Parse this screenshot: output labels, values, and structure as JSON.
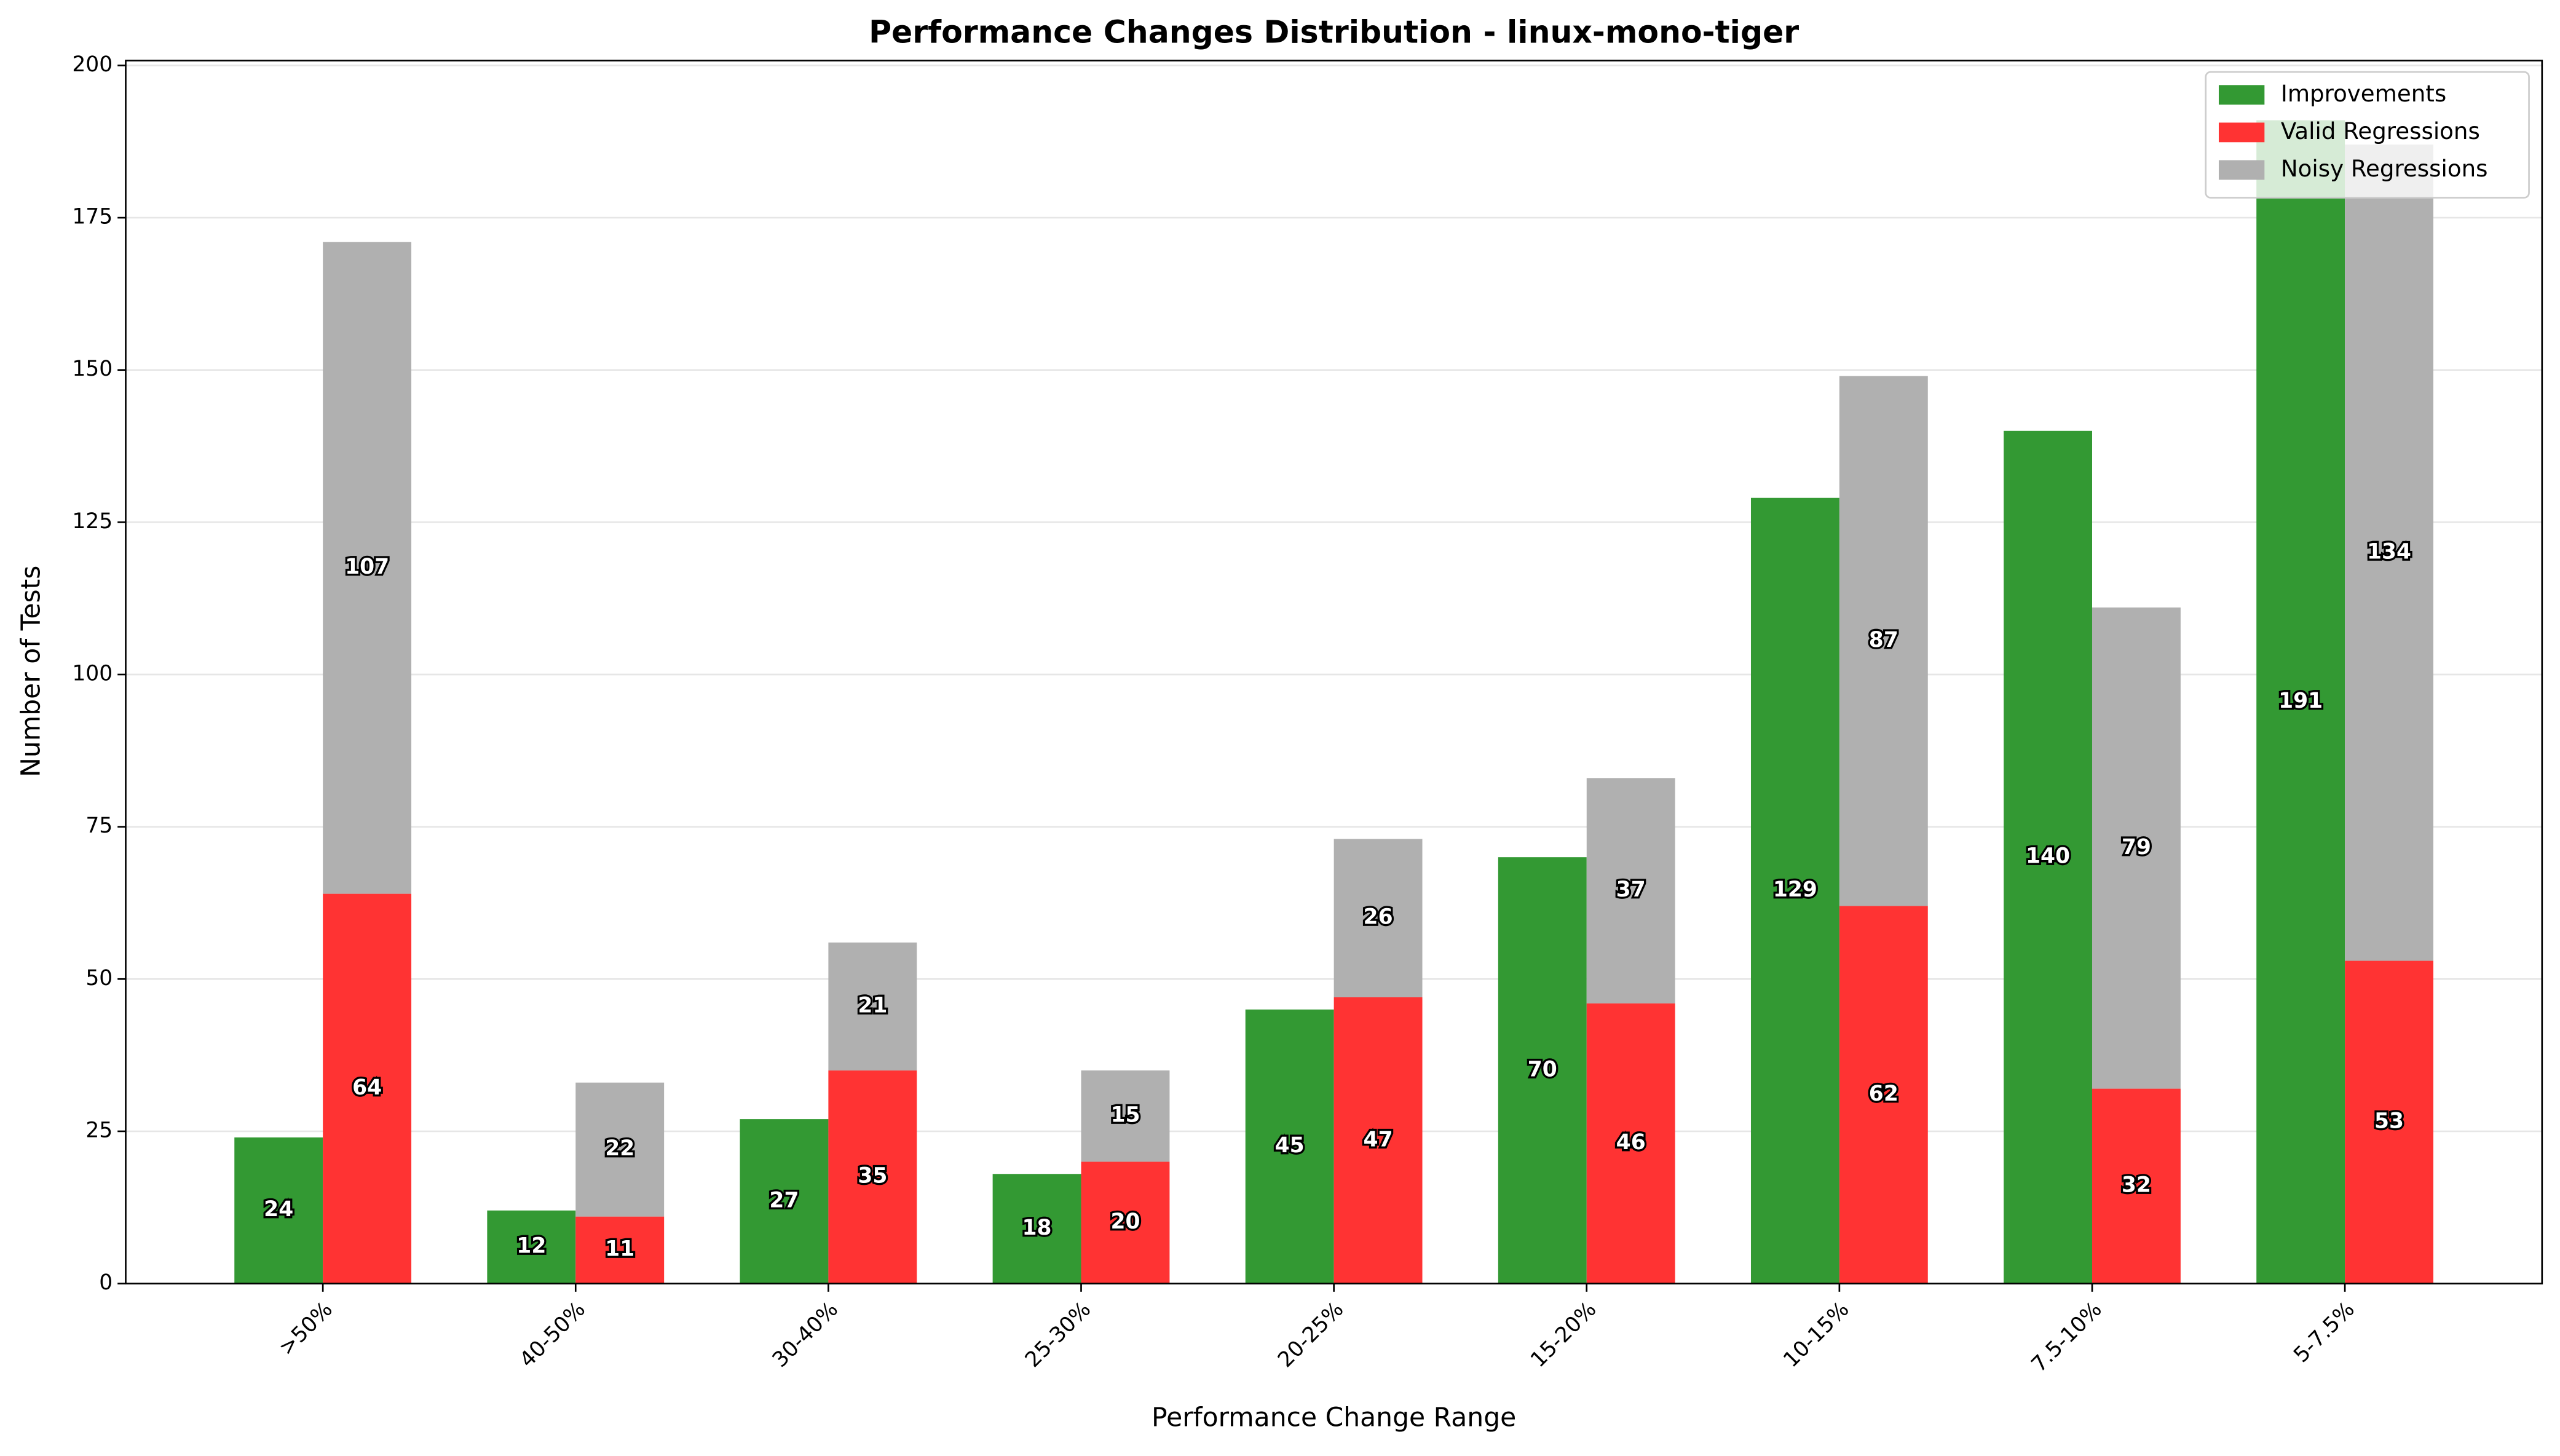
{
  "chart_data": {
    "type": "bar",
    "title": "Performance Changes Distribution - linux-mono-tiger",
    "x_label": "Performance Change Range",
    "y_label": "Number of Tests",
    "categories": [
      ">50%",
      "40-50%",
      "30-40%",
      "25-30%",
      "20-25%",
      "15-20%",
      "10-15%",
      "7.5-10%",
      "5-7.5%"
    ],
    "series": [
      {
        "name": "Improvements",
        "color": "#339933",
        "slot": 0,
        "values": [
          24,
          12,
          27,
          18,
          45,
          70,
          129,
          140,
          191
        ]
      },
      {
        "name": "Valid Regressions",
        "color": "#ff3333",
        "slot": 1,
        "values": [
          64,
          11,
          35,
          20,
          47,
          46,
          62,
          32,
          53
        ]
      },
      {
        "name": "Noisy Regressions",
        "color": "#b0b0b0",
        "slot": 1,
        "values": [
          107,
          22,
          21,
          15,
          26,
          37,
          87,
          79,
          134
        ]
      }
    ],
    "ylim": [
      0,
      200.8
    ],
    "yticks": [
      0,
      25,
      50,
      75,
      100,
      125,
      150,
      175,
      200
    ],
    "grid": true,
    "legend": "upper right",
    "value_labels_shown": true
  }
}
